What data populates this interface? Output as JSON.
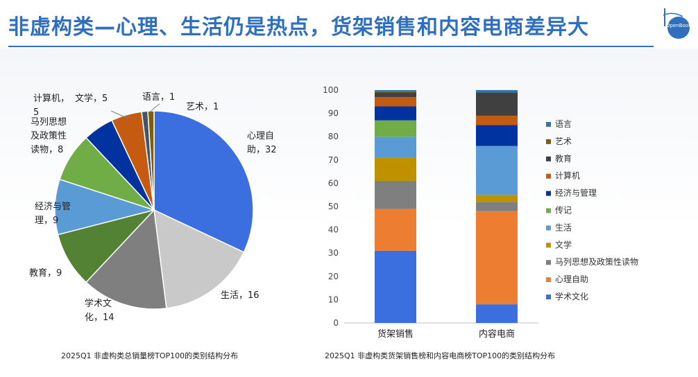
{
  "page": {
    "title": "非虚构类—心理、生活仍是热点，货架销售和内容电商差异大",
    "logo_text": "OpenBook"
  },
  "chart_data": [
    {
      "type": "pie",
      "caption": "2025Q1 非虚构类总销量榜TOP100的类别结构分布",
      "slices": [
        {
          "name": "心理自助",
          "value": 32,
          "color": "#3b6fe0",
          "label": "心理自助，32"
        },
        {
          "name": "生活",
          "value": 16,
          "color": "#c9c9c9",
          "label": "生活，16"
        },
        {
          "name": "学术文化",
          "value": 14,
          "color": "#7f7f7f",
          "label": "学术文化，14"
        },
        {
          "name": "教育",
          "value": 9,
          "color": "#548235",
          "label": "教育，9"
        },
        {
          "name": "经济与管理",
          "value": 9,
          "color": "#5b9bd5",
          "label": "经济与管理，9"
        },
        {
          "name": "马列思想及政策性读物",
          "value": 8,
          "color": "#70ad47",
          "label": "马列思想及政策性读物，8"
        },
        {
          "name": "计算机",
          "value": 5,
          "color": "#0033a0",
          "label": "计算机，5"
        },
        {
          "name": "文学",
          "value": 5,
          "color": "#c55a11",
          "label": "文学，5"
        },
        {
          "name": "语言",
          "value": 1,
          "color": "#44546a",
          "label": "语言，1"
        },
        {
          "name": "艺术",
          "value": 1,
          "color": "#7f6000",
          "label": "艺术，1"
        }
      ]
    },
    {
      "type": "bar",
      "stacked": true,
      "caption": "2025Q1 非虚构类货架销售榜和内容电商榜TOP100的类别结构分布",
      "categories": [
        "货架销售",
        "内容电商"
      ],
      "ylim": [
        0,
        100
      ],
      "yticks": [
        "0",
        "10",
        "20",
        "30",
        "40",
        "50",
        "60",
        "70",
        "80",
        "90",
        "100"
      ],
      "legend_position": "right",
      "series": [
        {
          "name": "学术文化",
          "color": "#3b6fe0",
          "values": [
            31,
            8
          ]
        },
        {
          "name": "心理自助",
          "color": "#ed7d31",
          "values": [
            18,
            40
          ]
        },
        {
          "name": "马列思想及政策性读物",
          "color": "#7f7f7f",
          "values": [
            12,
            4
          ]
        },
        {
          "name": "文学",
          "color": "#bf9000",
          "values": [
            10,
            3
          ]
        },
        {
          "name": "生活",
          "color": "#5b9bd5",
          "values": [
            9,
            21
          ]
        },
        {
          "name": "传记",
          "color": "#70ad47",
          "values": [
            7,
            0
          ]
        },
        {
          "name": "经济与管理",
          "color": "#0033a0",
          "values": [
            6,
            9
          ]
        },
        {
          "name": "计算机",
          "color": "#c55a11",
          "values": [
            4,
            4
          ]
        },
        {
          "name": "教育",
          "color": "#404040",
          "values": [
            2,
            10
          ]
        },
        {
          "name": "艺术",
          "color": "#7f6000",
          "values": [
            0.5,
            0
          ]
        },
        {
          "name": "语言",
          "color": "#2e75b6",
          "values": [
            0.5,
            1
          ]
        }
      ]
    }
  ]
}
